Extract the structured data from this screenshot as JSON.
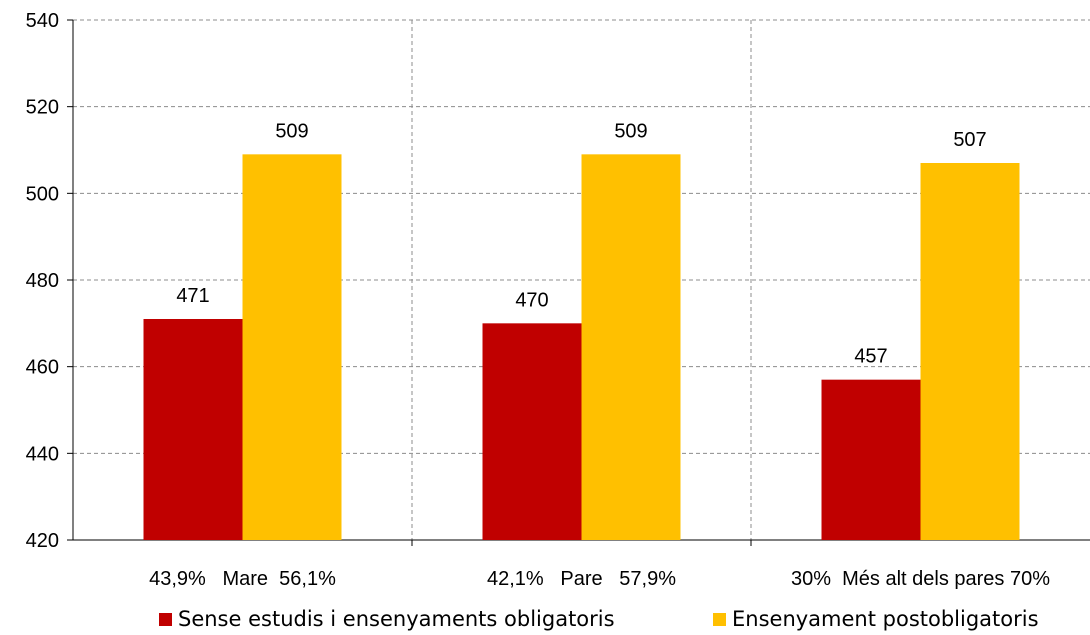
{
  "chart_data": {
    "type": "bar",
    "categories": [
      "43,9%   Mare  56,1%",
      "42,1%   Pare   57,9%",
      "30%  Més alt dels pares 70%"
    ],
    "series": [
      {
        "name": "Sense estudis i ensenyaments obligatoris",
        "values": [
          471,
          470,
          457
        ],
        "labels": [
          "471",
          "470",
          "457"
        ],
        "color": "#c00000"
      },
      {
        "name": "Ensenyament postobligatoris",
        "values": [
          509,
          509,
          507
        ],
        "labels": [
          "509",
          "509",
          "507"
        ],
        "color": "#ffc000"
      }
    ],
    "ylim": [
      420,
      540
    ],
    "yticks": [
      "420",
      "440",
      "460",
      "480",
      "500",
      "520",
      "540"
    ],
    "grid": true,
    "legend_position": "bottom"
  }
}
